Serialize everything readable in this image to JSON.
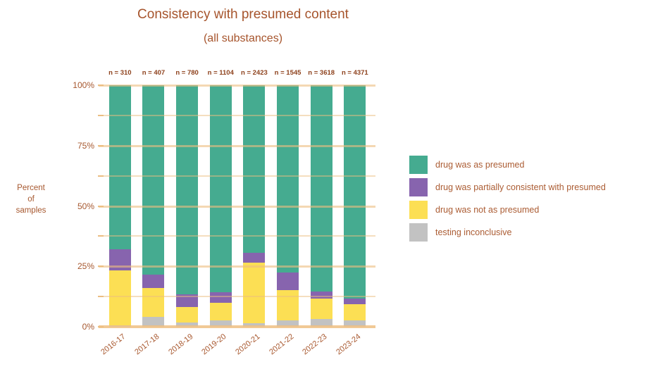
{
  "title": "Consistency with presumed content",
  "subtitle": "(all substances)",
  "y_axis": {
    "label_lines": [
      "Percent",
      "of",
      "samples"
    ],
    "tick_labels": [
      "0%",
      "25%",
      "50%",
      "75%",
      "100%"
    ],
    "major_pct": [
      0,
      25,
      50,
      75,
      100
    ],
    "minor_pct": [
      12.5,
      37.5,
      62.5,
      87.5
    ]
  },
  "chart_data": {
    "type": "bar",
    "stacked": true,
    "title": "Consistency with presumed content",
    "subtitle": "(all substances)",
    "ylabel": "Percent of samples",
    "ylim": [
      0,
      100
    ],
    "grid": true,
    "legend_position": "right",
    "categories": [
      "2016-17",
      "2017-18",
      "2018-19",
      "2019-20",
      "2020-21",
      "2021-22",
      "2022-23",
      "2023-24"
    ],
    "n_labels": [
      "n = 310",
      "n = 407",
      "n = 780",
      "n = 1104",
      "n = 2423",
      "n = 1545",
      "n = 3618",
      "n = 4371"
    ],
    "series": [
      {
        "name": "testing inconclusive",
        "color": "#c2c2c2",
        "values": [
          0.7,
          4.0,
          1.8,
          2.5,
          1.5,
          2.5,
          3.1,
          2.7
        ]
      },
      {
        "name": "drug was not as presumed",
        "color": "#fcdf54",
        "values": [
          22.6,
          12.0,
          6.3,
          7.3,
          25.1,
          12.7,
          8.7,
          6.5
        ]
      },
      {
        "name": "drug was partially consistent with presumed",
        "color": "#8764ae",
        "values": [
          8.9,
          5.5,
          5.4,
          4.6,
          4.1,
          7.2,
          2.9,
          2.6
        ]
      },
      {
        "name": "drug was as presumed",
        "color": "#45ab90",
        "values": [
          67.8,
          78.5,
          86.5,
          85.6,
          69.3,
          77.6,
          85.3,
          88.2
        ]
      }
    ],
    "legend_order": [
      "drug was as presumed",
      "drug was partially consistent with presumed",
      "drug was not as presumed",
      "testing inconclusive"
    ]
  },
  "colors": {
    "background": "#ffffff",
    "title_text": "#a6542c",
    "axis_text": "#a6572e",
    "n_label_text": "#8e421d",
    "legend_text": "#ab5c33",
    "gridline": "#ecc080",
    "green": "#45ab90",
    "purple": "#8764ae",
    "yellow": "#fcdf54",
    "gray": "#c2c2c2"
  }
}
